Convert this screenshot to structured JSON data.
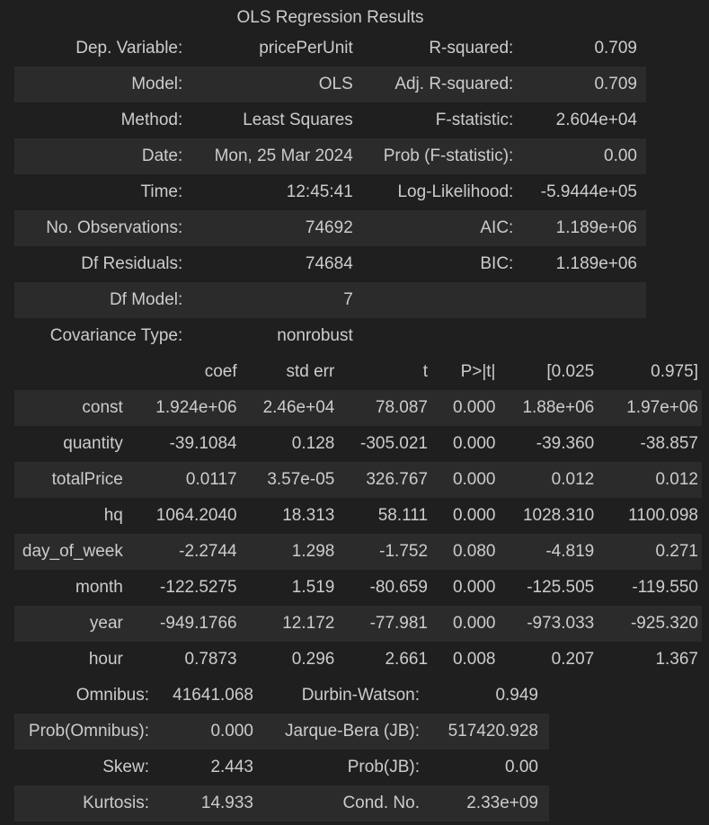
{
  "title": "OLS Regression Results",
  "summary": [
    [
      "Dep. Variable:",
      "pricePerUnit",
      "R-squared:",
      "0.709"
    ],
    [
      "Model:",
      "OLS",
      "Adj. R-squared:",
      "0.709"
    ],
    [
      "Method:",
      "Least Squares",
      "F-statistic:",
      "2.604e+04"
    ],
    [
      "Date:",
      "Mon, 25 Mar 2024",
      "Prob (F-statistic):",
      "0.00"
    ],
    [
      "Time:",
      "12:45:41",
      "Log-Likelihood:",
      "-5.9444e+05"
    ],
    [
      "No. Observations:",
      "74692",
      "AIC:",
      "1.189e+06"
    ],
    [
      "Df Residuals:",
      "74684",
      "BIC:",
      "1.189e+06"
    ],
    [
      "Df Model:",
      "7",
      "",
      ""
    ],
    [
      "Covariance Type:",
      "nonrobust",
      "",
      ""
    ]
  ],
  "coef_header": [
    "",
    "coef",
    "std err",
    "t",
    "P>|t|",
    "[0.025",
    "0.975]"
  ],
  "coef_rows": [
    [
      "const",
      "1.924e+06",
      "2.46e+04",
      "78.087",
      "0.000",
      "1.88e+06",
      "1.97e+06"
    ],
    [
      "quantity",
      "-39.1084",
      "0.128",
      "-305.021",
      "0.000",
      "-39.360",
      "-38.857"
    ],
    [
      "totalPrice",
      "0.0117",
      "3.57e-05",
      "326.767",
      "0.000",
      "0.012",
      "0.012"
    ],
    [
      "hq",
      "1064.2040",
      "18.313",
      "58.111",
      "0.000",
      "1028.310",
      "1100.098"
    ],
    [
      "day_of_week",
      "-2.2744",
      "1.298",
      "-1.752",
      "0.080",
      "-4.819",
      "0.271"
    ],
    [
      "month",
      "-122.5275",
      "1.519",
      "-80.659",
      "0.000",
      "-125.505",
      "-119.550"
    ],
    [
      "year",
      "-949.1766",
      "12.172",
      "-77.981",
      "0.000",
      "-973.033",
      "-925.320"
    ],
    [
      "hour",
      "0.7873",
      "0.296",
      "2.661",
      "0.008",
      "0.207",
      "1.367"
    ]
  ],
  "diagnostics": [
    [
      "Omnibus:",
      "41641.068",
      "Durbin-Watson:",
      "0.949"
    ],
    [
      "Prob(Omnibus):",
      "0.000",
      "Jarque-Bera (JB):",
      "517420.928"
    ],
    [
      "Skew:",
      "2.443",
      "Prob(JB):",
      "0.00"
    ],
    [
      "Kurtosis:",
      "14.933",
      "Cond. No.",
      "2.33e+09"
    ]
  ]
}
